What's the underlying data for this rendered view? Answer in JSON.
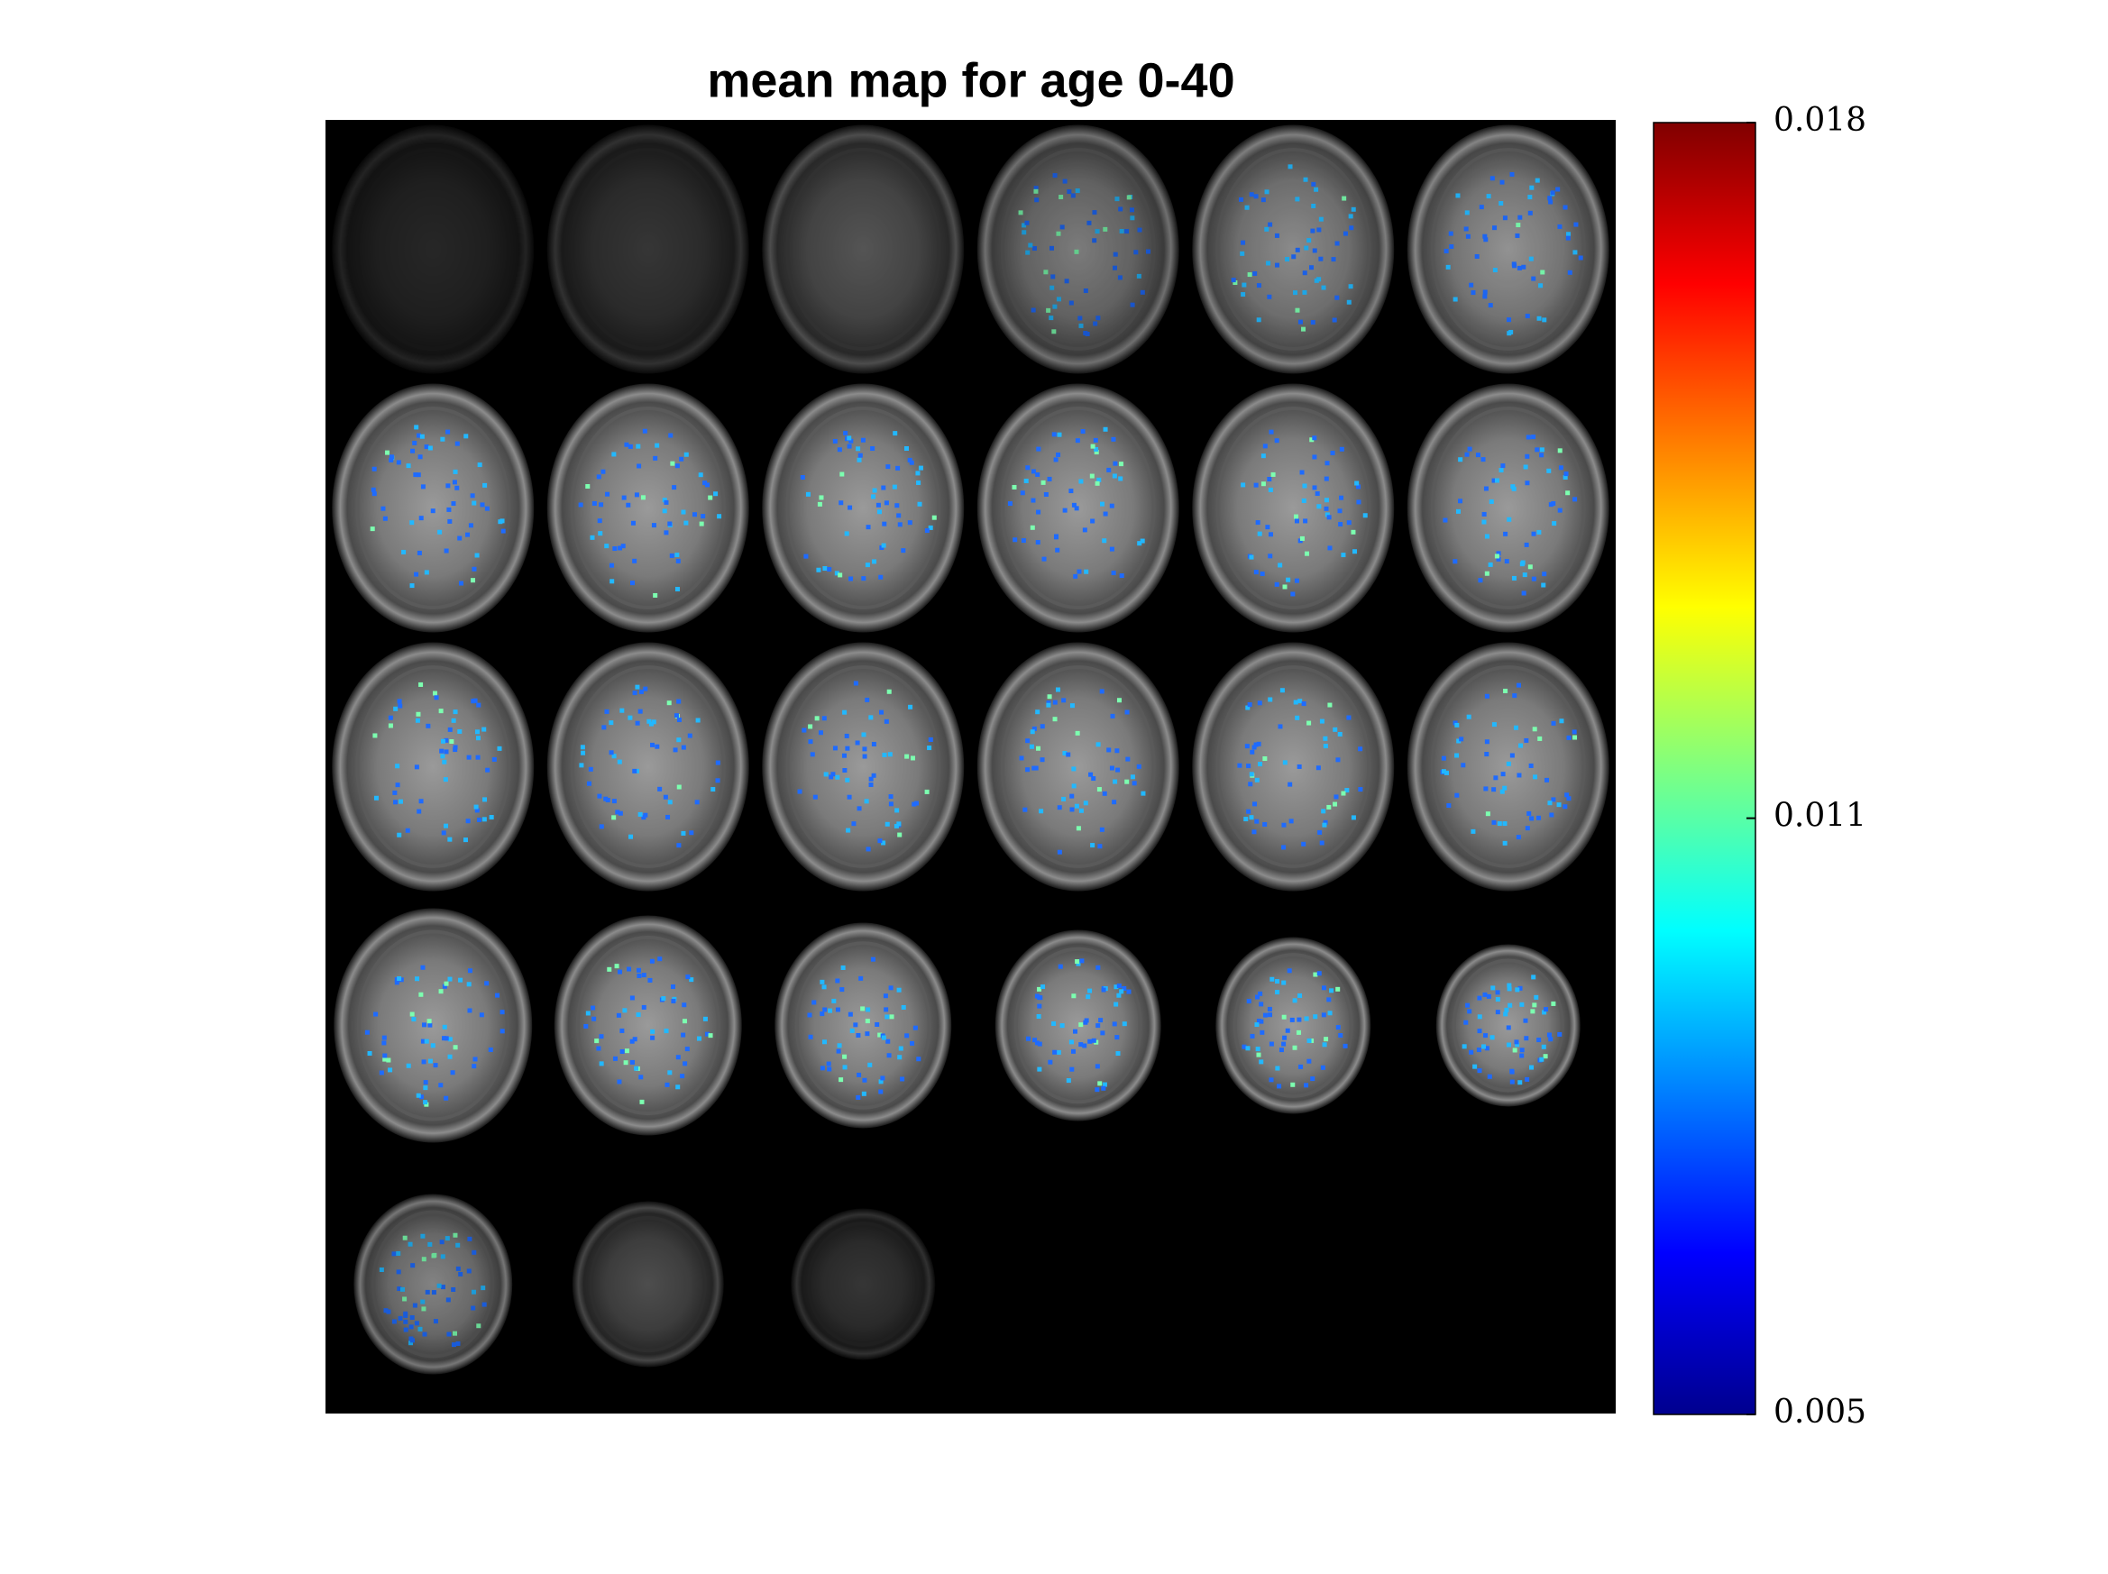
{
  "chart_data": {
    "type": "image",
    "title": "mean map for age 0-40",
    "colormap": "jet",
    "clim": [
      0.005,
      0.018
    ],
    "cticks": [
      0.005,
      0.011,
      0.018
    ]
  }
}
